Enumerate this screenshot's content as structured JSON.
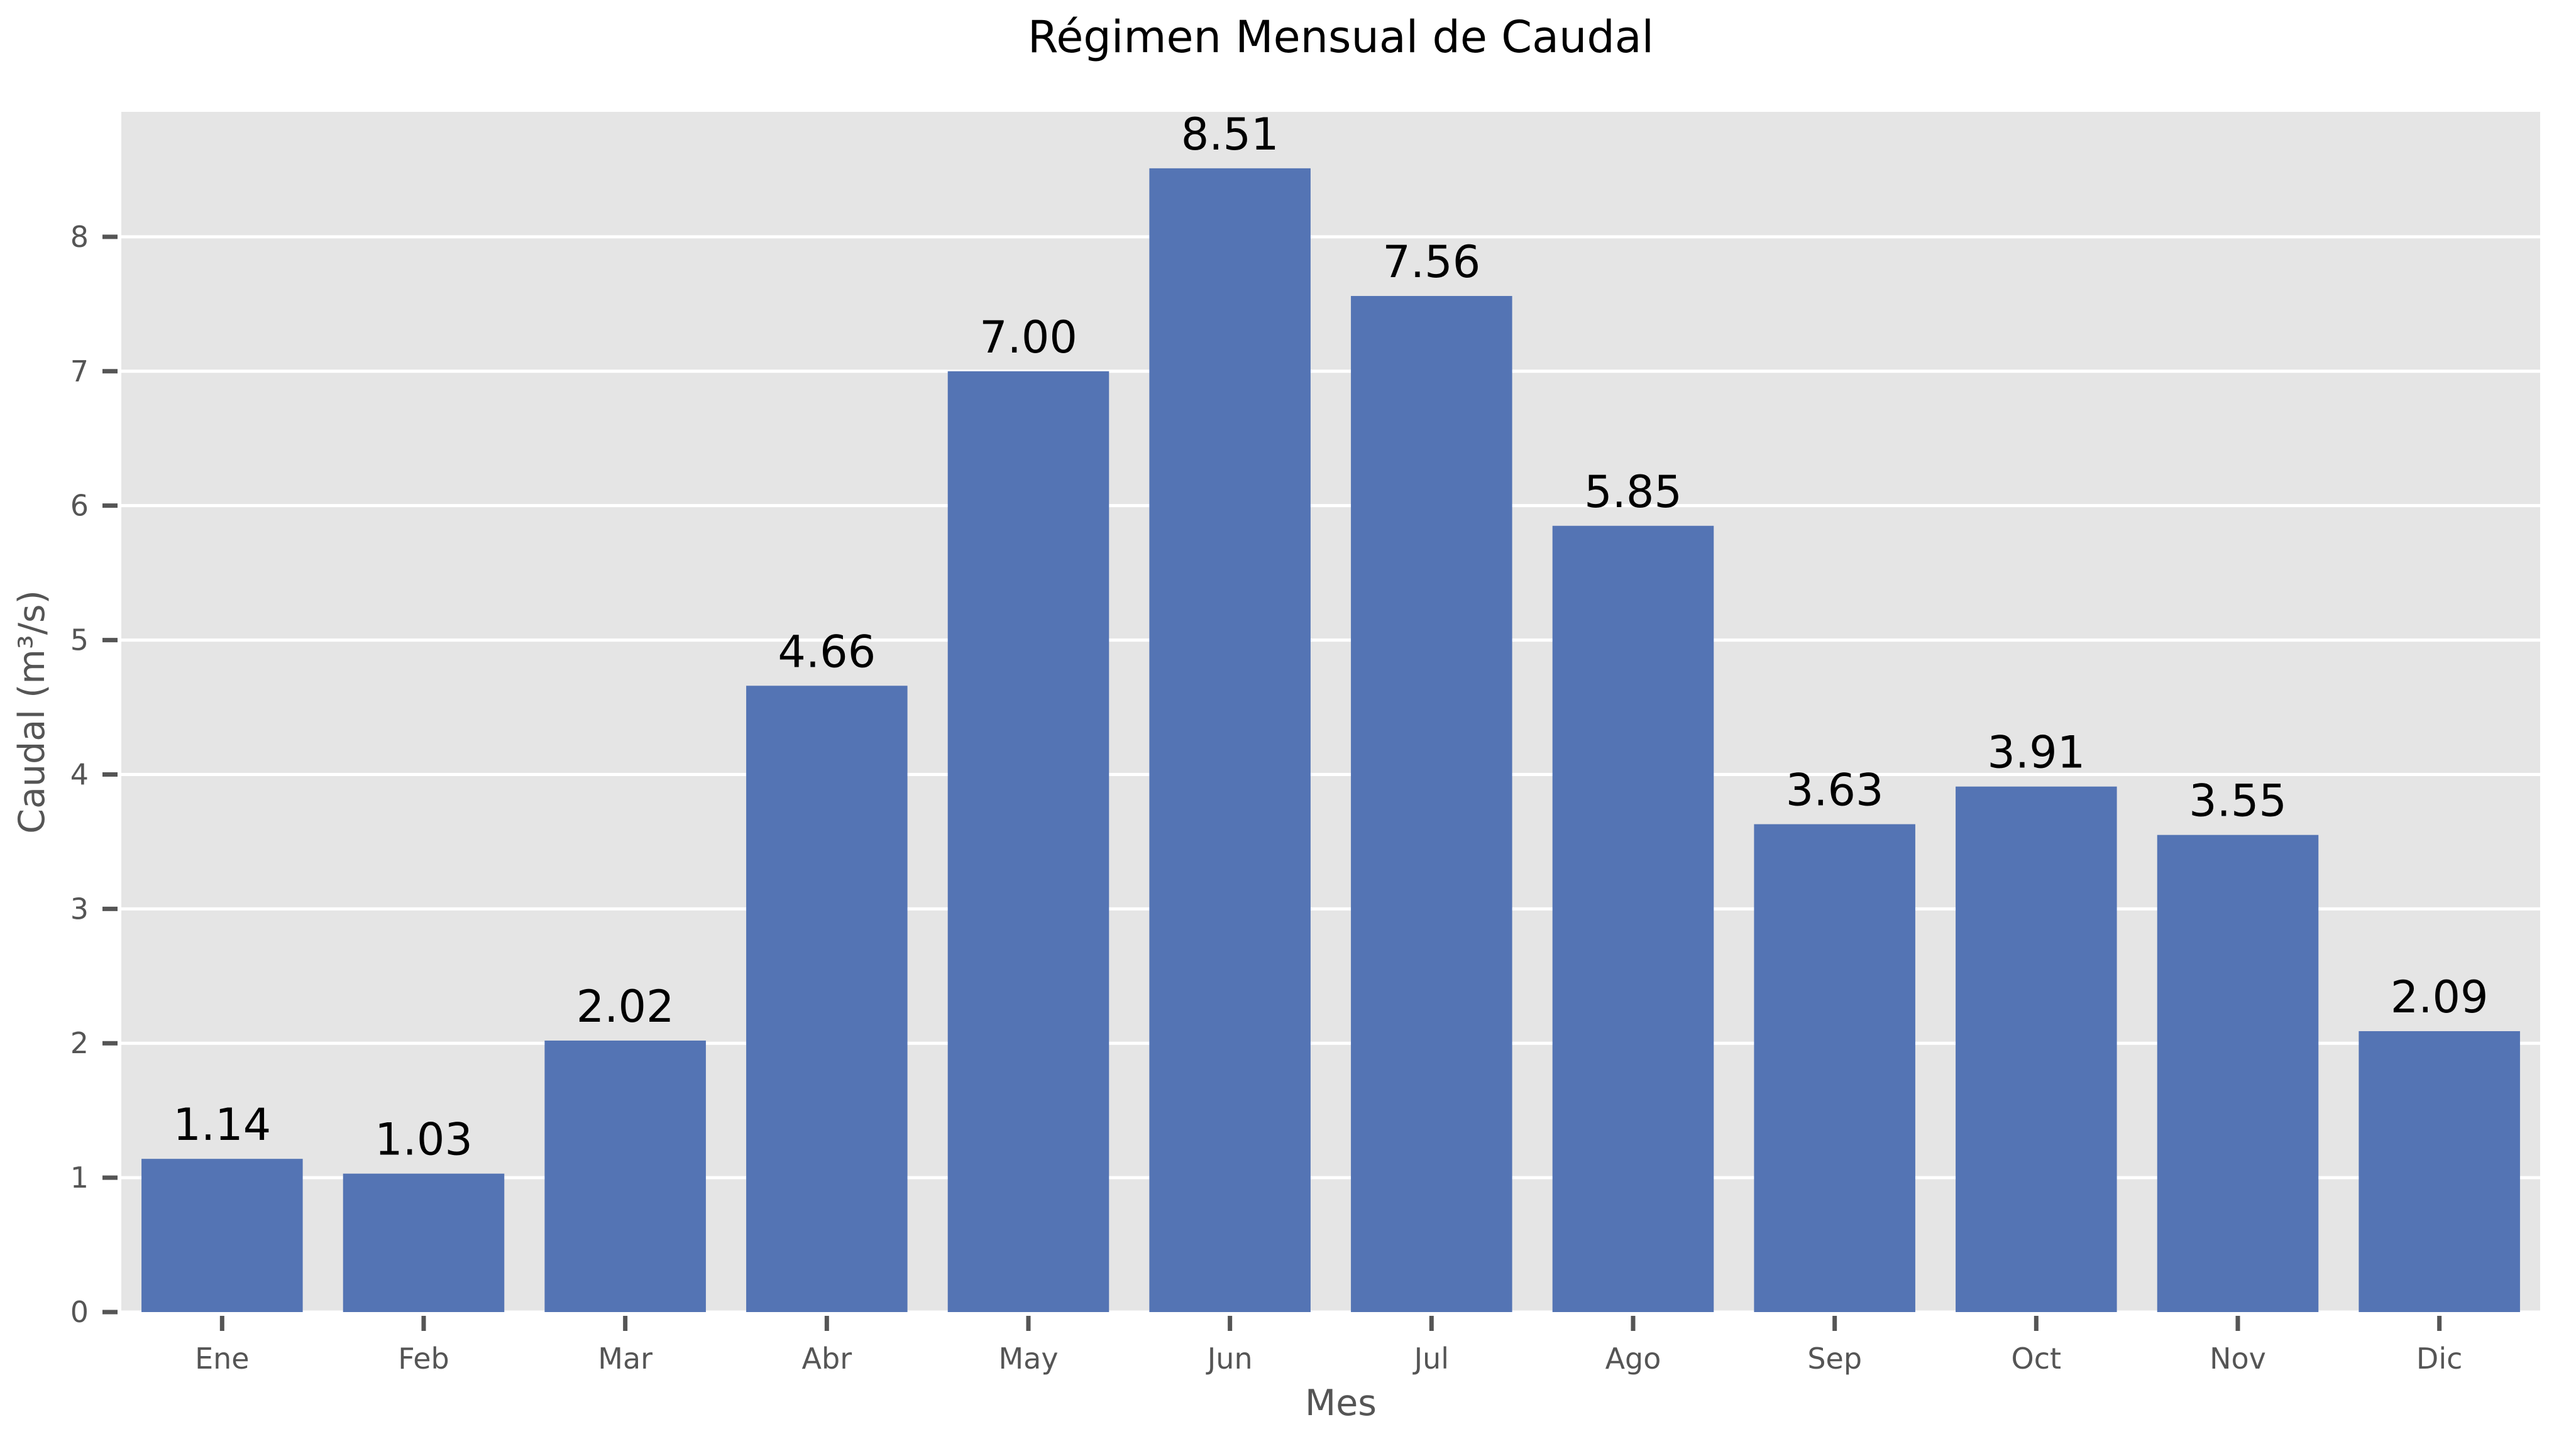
{
  "chart_data": {
    "type": "bar",
    "title": "Régimen Mensual de Caudal",
    "xlabel": "Mes",
    "ylabel": "Caudal (m³/s)",
    "categories": [
      "Ene",
      "Feb",
      "Mar",
      "Abr",
      "May",
      "Jun",
      "Jul",
      "Ago",
      "Sep",
      "Oct",
      "Nov",
      "Dic"
    ],
    "values": [
      1.14,
      1.03,
      2.02,
      4.66,
      7.0,
      8.51,
      7.56,
      5.85,
      3.63,
      3.91,
      3.55,
      2.09
    ],
    "value_labels": [
      "1.14",
      "1.03",
      "2.02",
      "4.66",
      "7.00",
      "8.51",
      "7.56",
      "5.85",
      "3.63",
      "3.91",
      "3.55",
      "2.09"
    ],
    "ylim": [
      0,
      8.93
    ],
    "yticks": [
      0,
      1,
      2,
      3,
      4,
      5,
      6,
      7,
      8
    ],
    "grid": true,
    "legend": "none",
    "colors": {
      "bar": "#5474b4",
      "plot_background": "#e5e5e5",
      "grid": "#ffffff",
      "page_background": "#ffffff"
    }
  }
}
